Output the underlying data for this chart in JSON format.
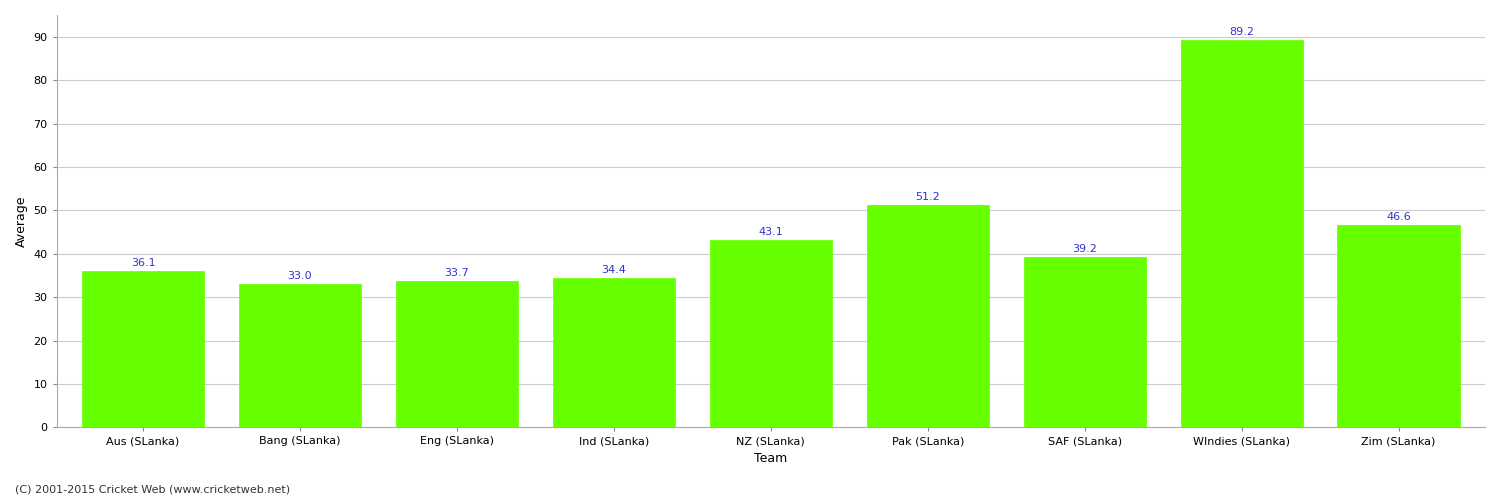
{
  "categories": [
    "Aus (SLanka)",
    "Bang (SLanka)",
    "Eng (SLanka)",
    "Ind (SLanka)",
    "NZ (SLanka)",
    "Pak (SLanka)",
    "SAF (SLanka)",
    "WIndies (SLanka)",
    "Zim (SLanka)"
  ],
  "values": [
    36.1,
    33.0,
    33.7,
    34.4,
    43.1,
    51.2,
    39.2,
    89.2,
    46.6
  ],
  "bar_color": "#66ff00",
  "label_color": "#3333cc",
  "xlabel": "Team",
  "ylabel": "Average",
  "ylim": [
    0,
    95
  ],
  "yticks": [
    0,
    10,
    20,
    30,
    40,
    50,
    60,
    70,
    80,
    90
  ],
  "background_color": "#ffffff",
  "grid_color": "#cccccc",
  "footer": "(C) 2001-2015 Cricket Web (www.cricketweb.net)",
  "label_fontsize": 8,
  "axis_label_fontsize": 9,
  "tick_fontsize": 8,
  "footer_fontsize": 8,
  "bar_width": 0.78
}
